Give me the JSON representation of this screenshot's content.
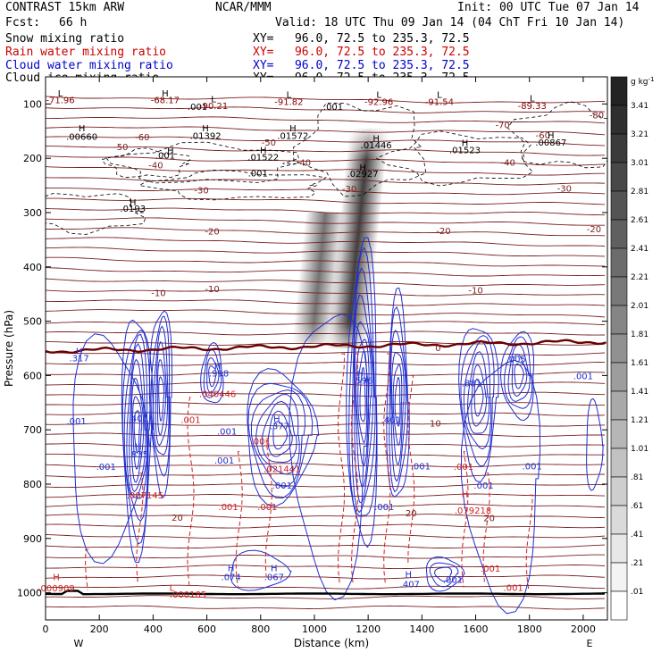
{
  "header": {
    "model": "CONTRAST 15km ARW",
    "center": "NCAR/MMM",
    "init": "Init: 00 UTC Tue 07 Jan 14",
    "fcst_label": "Fcst:",
    "fcst_value": "66 h",
    "valid": "Valid: 18 UTC Thu 09 Jan 14 (04 ChT Fri 10 Jan 14)"
  },
  "fields": [
    {
      "name": "Snow mixing ratio",
      "xy": "XY=   96.0, 72.5 to 235.3, 72.5",
      "color": "#000000"
    },
    {
      "name": "Rain water mixing ratio",
      "xy": "XY=   96.0, 72.5 to 235.3, 72.5",
      "color": "#cc0000"
    },
    {
      "name": "Cloud water mixing ratio",
      "xy": "XY=   96.0, 72.5 to 235.3, 72.5",
      "color": "#0000cc"
    },
    {
      "name": "Cloud ice mixing ratio",
      "xy": "XY=   96.0, 72.5 to 235.3, 72.5",
      "color": "#000000"
    }
  ],
  "colors": {
    "temperature": "#7a1f1f",
    "freezing_level": "#6b0000",
    "cloud_water": "#1f2fd0",
    "rain_water": "#d02020",
    "cloud_ice": "#000000",
    "surface": "#000000"
  },
  "chart_data": {
    "type": "cross-section",
    "xlabel": "Distance (km)",
    "ylabel": "Pressure (hPa)",
    "xlim": [
      0,
      2090
    ],
    "ylim": [
      1050,
      50
    ],
    "x_ticks": [
      0,
      200,
      400,
      600,
      800,
      1000,
      1200,
      1400,
      1600,
      1800,
      2000
    ],
    "y_ticks": [
      100,
      200,
      300,
      400,
      500,
      600,
      700,
      800,
      900,
      1000
    ],
    "x_end_labels": {
      "left": "W",
      "right": "E"
    },
    "colorbar": {
      "unit": "g kg",
      "unit_exp": "-1",
      "levels": [
        "3.41",
        "3.21",
        "3.01",
        "2.81",
        "2.61",
        "2.41",
        "2.21",
        "2.01",
        "1.81",
        "1.61",
        "1.41",
        "1.21",
        "1.01",
        ".81",
        ".61",
        ".41",
        ".21",
        ".01"
      ]
    },
    "temperature_labels": [
      {
        "text": "-80",
        "x": 2050,
        "p": 120
      },
      {
        "text": "-70",
        "x": 1700,
        "p": 138
      },
      {
        "text": "-60",
        "x": 360,
        "p": 160
      },
      {
        "text": "-60",
        "x": 1850,
        "p": 157
      },
      {
        "text": "-50",
        "x": 280,
        "p": 178
      },
      {
        "text": "-50",
        "x": 830,
        "p": 170
      },
      {
        "text": "-40",
        "x": 410,
        "p": 212
      },
      {
        "text": "-40",
        "x": 960,
        "p": 207
      },
      {
        "text": "-40",
        "x": 1720,
        "p": 207
      },
      {
        "text": "-30",
        "x": 580,
        "p": 258
      },
      {
        "text": "-30",
        "x": 1130,
        "p": 256
      },
      {
        "text": "-30",
        "x": 1930,
        "p": 255
      },
      {
        "text": "-20",
        "x": 620,
        "p": 334
      },
      {
        "text": "-20",
        "x": 1480,
        "p": 333
      },
      {
        "text": "-20",
        "x": 2040,
        "p": 330
      },
      {
        "text": "-10",
        "x": 420,
        "p": 447
      },
      {
        "text": "-10",
        "x": 620,
        "p": 440
      },
      {
        "text": "-10",
        "x": 1600,
        "p": 442
      },
      {
        "text": "0",
        "x": 1460,
        "p": 548
      },
      {
        "text": "10",
        "x": 1450,
        "p": 687
      },
      {
        "text": "20",
        "x": 490,
        "p": 861
      },
      {
        "text": "20",
        "x": 1360,
        "p": 853
      },
      {
        "text": "20",
        "x": 1650,
        "p": 862
      }
    ],
    "extrema_labels": [
      {
        "text": "L",
        "x": 55,
        "p": 80,
        "color": "black"
      },
      {
        "text": "-71.96",
        "x": 55,
        "p": 92,
        "color": "darkred"
      },
      {
        "text": "H",
        "x": 445,
        "p": 80,
        "color": "black"
      },
      {
        "text": "-68.17",
        "x": 445,
        "p": 92,
        "color": "darkred"
      },
      {
        "text": "L",
        "x": 625,
        "p": 90,
        "color": "black"
      },
      {
        "text": ".001",
        "x": 565,
        "p": 104,
        "color": "black"
      },
      {
        "text": "-90.21",
        "x": 625,
        "p": 103,
        "color": "darkred"
      },
      {
        "text": "L",
        "x": 905,
        "p": 82,
        "color": "black"
      },
      {
        "text": "-91.82",
        "x": 905,
        "p": 95,
        "color": "darkred"
      },
      {
        "text": ".001",
        "x": 1070,
        "p": 104,
        "color": "black"
      },
      {
        "text": "L",
        "x": 1240,
        "p": 82,
        "color": "black"
      },
      {
        "text": "-92.96",
        "x": 1240,
        "p": 95,
        "color": "darkred"
      },
      {
        "text": "L",
        "x": 1465,
        "p": 82,
        "color": "black"
      },
      {
        "text": "-91.54",
        "x": 1465,
        "p": 95,
        "color": "darkred"
      },
      {
        "text": "L",
        "x": 1810,
        "p": 89,
        "color": "black"
      },
      {
        "text": "-89.33",
        "x": 1810,
        "p": 103,
        "color": "darkred"
      },
      {
        "text": "H",
        "x": 135,
        "p": 144,
        "color": "black"
      },
      {
        "text": ".00660",
        "x": 135,
        "p": 159,
        "color": "black"
      },
      {
        "text": "H",
        "x": 595,
        "p": 144,
        "color": "black"
      },
      {
        "text": ".01392",
        "x": 595,
        "p": 158,
        "color": "black"
      },
      {
        "text": "H",
        "x": 920,
        "p": 144,
        "color": "black"
      },
      {
        "text": ".01572",
        "x": 920,
        "p": 158,
        "color": "black"
      },
      {
        "text": "H",
        "x": 1230,
        "p": 163,
        "color": "black"
      },
      {
        "text": ".01446",
        "x": 1230,
        "p": 175,
        "color": "black"
      },
      {
        "text": "H",
        "x": 1560,
        "p": 171,
        "color": "black"
      },
      {
        "text": ".01523",
        "x": 1560,
        "p": 184,
        "color": "black"
      },
      {
        "text": "H",
        "x": 1880,
        "p": 157,
        "color": "black"
      },
      {
        "text": ".00867",
        "x": 1880,
        "p": 170,
        "color": "black"
      },
      {
        "text": "H",
        "x": 465,
        "p": 185,
        "color": "black"
      },
      {
        "text": ".001",
        "x": 445,
        "p": 194,
        "color": "black"
      },
      {
        "text": "H",
        "x": 810,
        "p": 184,
        "color": "black"
      },
      {
        "text": ".01522",
        "x": 810,
        "p": 197,
        "color": "black"
      },
      {
        "text": ".001",
        "x": 790,
        "p": 227,
        "color": "black"
      },
      {
        "text": "H",
        "x": 1180,
        "p": 216,
        "color": "black"
      },
      {
        "text": ".02927",
        "x": 1180,
        "p": 228,
        "color": "black"
      },
      {
        "text": "H",
        "x": 325,
        "p": 280,
        "color": "black"
      },
      {
        "text": ".0193",
        "x": 325,
        "p": 292,
        "color": "black"
      },
      {
        "text": "H",
        "x": 125,
        "p": 554,
        "color": "blue"
      },
      {
        "text": ".317",
        "x": 125,
        "p": 567,
        "color": "blue"
      },
      {
        "text": "H",
        "x": 640,
        "p": 581,
        "color": "blue"
      },
      {
        "text": ".998",
        "x": 645,
        "p": 595,
        "color": "blue"
      },
      {
        "text": ".040446",
        "x": 640,
        "p": 633,
        "color": "red"
      },
      {
        "text": ".001",
        "x": 115,
        "p": 683,
        "color": "blue"
      },
      {
        "text": ".401",
        "x": 345,
        "p": 678,
        "color": "blue"
      },
      {
        "text": "H",
        "x": 345,
        "p": 730,
        "color": "blue"
      },
      {
        "text": ".835",
        "x": 345,
        "p": 744,
        "color": "blue"
      },
      {
        "text": ".001",
        "x": 540,
        "p": 681,
        "color": "red"
      },
      {
        "text": ".001",
        "x": 675,
        "p": 702,
        "color": "blue"
      },
      {
        "text": ".001",
        "x": 665,
        "p": 756,
        "color": "blue"
      },
      {
        "text": ".001",
        "x": 225,
        "p": 767,
        "color": "blue"
      },
      {
        "text": "H",
        "x": 860,
        "p": 679,
        "color": "blue"
      },
      {
        "text": ".377",
        "x": 870,
        "p": 692,
        "color": "blue"
      },
      {
        "text": ".001",
        "x": 800,
        "p": 720,
        "color": "red"
      },
      {
        "text": ".021441",
        "x": 880,
        "p": 771,
        "color": "red"
      },
      {
        "text": ".001",
        "x": 880,
        "p": 802,
        "color": "blue"
      },
      {
        "text": ".001",
        "x": 680,
        "p": 841,
        "color": "red"
      },
      {
        "text": ".001",
        "x": 825,
        "p": 841,
        "color": "red"
      },
      {
        "text": ".007145",
        "x": 370,
        "p": 820,
        "color": "red"
      },
      {
        "text": "H",
        "x": 1170,
        "p": 595,
        "color": "blue"
      },
      {
        "text": ".596",
        "x": 1180,
        "p": 608,
        "color": "blue"
      },
      {
        "text": ".401",
        "x": 1285,
        "p": 681,
        "color": "blue"
      },
      {
        "text": ".001",
        "x": 1395,
        "p": 766,
        "color": "blue"
      },
      {
        "text": ".001",
        "x": 1260,
        "p": 841,
        "color": "blue"
      },
      {
        "text": ".001",
        "x": 1555,
        "p": 767,
        "color": "red"
      },
      {
        "text": ".001",
        "x": 1630,
        "p": 802,
        "color": "blue"
      },
      {
        "text": "H",
        "x": 1560,
        "p": 817,
        "color": "red"
      },
      {
        "text": ".079218",
        "x": 1590,
        "p": 848,
        "color": "red"
      },
      {
        "text": ".881",
        "x": 1585,
        "p": 613,
        "color": "blue"
      },
      {
        "text": ".001",
        "x": 1810,
        "p": 766,
        "color": "blue"
      },
      {
        "text": ".005",
        "x": 1750,
        "p": 569,
        "color": "blue"
      },
      {
        "text": ".001",
        "x": 2000,
        "p": 600,
        "color": "blue"
      },
      {
        "text": "H",
        "x": 690,
        "p": 954,
        "color": "blue"
      },
      {
        "text": ".074",
        "x": 690,
        "p": 970,
        "color": "blue"
      },
      {
        "text": "H",
        "x": 850,
        "p": 954,
        "color": "blue"
      },
      {
        "text": ".067",
        "x": 850,
        "p": 970,
        "color": "blue"
      },
      {
        "text": "H",
        "x": 1350,
        "p": 965,
        "color": "blue"
      },
      {
        "text": ".407",
        "x": 1355,
        "p": 983,
        "color": "blue"
      },
      {
        "text": ".001",
        "x": 1515,
        "p": 975,
        "color": "blue"
      },
      {
        "text": ".001",
        "x": 1655,
        "p": 955,
        "color": "red"
      },
      {
        "text": ".001",
        "x": 1740,
        "p": 990,
        "color": "red"
      },
      {
        "text": "H",
        "x": 40,
        "p": 970,
        "color": "red"
      },
      {
        "text": ".000909",
        "x": 40,
        "p": 991,
        "color": "red"
      },
      {
        "text": "L",
        "x": 470,
        "p": 990,
        "color": "red"
      },
      {
        "text": ".000185",
        "x": 530,
        "p": 1002,
        "color": "red"
      }
    ]
  }
}
